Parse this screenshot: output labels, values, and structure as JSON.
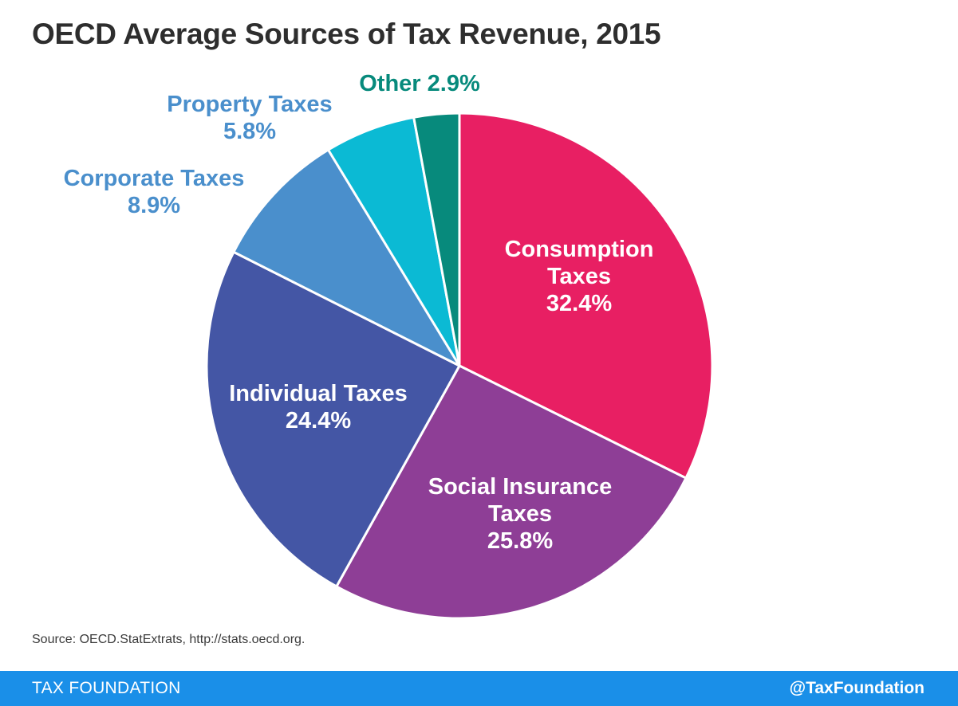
{
  "title": "OECD Average Sources of Tax Revenue, 2015",
  "source": "Source: OECD.StatExtrats, http://stats.oecd.org.",
  "footer": {
    "org": "TAX FOUNDATION",
    "handle": "@TaxFoundation",
    "color": "#1a8fe8"
  },
  "chart_data": {
    "type": "pie",
    "title": "OECD Average Sources of Tax Revenue, 2015",
    "slices": [
      {
        "name": "Consumption Taxes",
        "label_lines": [
          "Consumption",
          "Taxes"
        ],
        "value": 32.4,
        "value_label": "32.4%",
        "color": "#e81f63",
        "label_color": "#ffffff"
      },
      {
        "name": "Social Insurance Taxes",
        "label_lines": [
          "Social Insurance",
          "Taxes"
        ],
        "value": 25.8,
        "value_label": "25.8%",
        "color": "#8e3e96",
        "label_color": "#ffffff"
      },
      {
        "name": "Individual Taxes",
        "label_lines": [
          "Individual Taxes"
        ],
        "value": 24.4,
        "value_label": "24.4%",
        "color": "#4456a5",
        "label_color": "#ffffff"
      },
      {
        "name": "Corporate Taxes",
        "label_lines": [
          "Corporate Taxes"
        ],
        "value": 8.9,
        "value_label": "8.9%",
        "color": "#4a8fcc",
        "label_color": "#4a8fcc"
      },
      {
        "name": "Property Taxes",
        "label_lines": [
          "Property Taxes"
        ],
        "value": 5.8,
        "value_label": "5.8%",
        "color": "#0bbad4",
        "label_color": "#4a8fcc"
      },
      {
        "name": "Other",
        "label_lines": [
          "Other"
        ],
        "value": 2.9,
        "value_label": "2.9%",
        "color": "#078a7c",
        "label_color": "#078a7c"
      }
    ]
  }
}
